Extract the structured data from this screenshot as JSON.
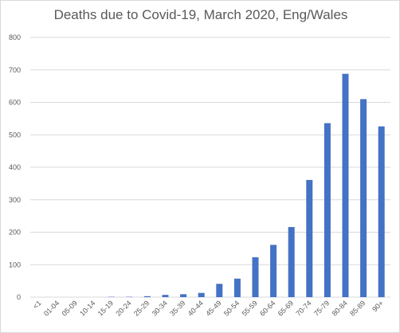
{
  "chart_data": {
    "type": "bar",
    "title": "Deaths due to Covid-19, March 2020, Eng/Wales",
    "xlabel": "",
    "ylabel": "",
    "categories": [
      "<1",
      "01-04",
      "05-09",
      "10-14",
      "15-19",
      "20-24",
      "25-29",
      "30-34",
      "35-39",
      "40-44",
      "45-49",
      "50-54",
      "55-59",
      "60-64",
      "65-69",
      "70-74",
      "75-79",
      "80-84",
      "85-89",
      "90+"
    ],
    "values": [
      0,
      0,
      0,
      0,
      1,
      1,
      3,
      7,
      9,
      13,
      41,
      57,
      123,
      161,
      216,
      361,
      536,
      688,
      610,
      526
    ],
    "ylim": [
      0,
      800
    ],
    "yticks": [
      "0",
      "100",
      "200",
      "300",
      "400",
      "500",
      "600",
      "700",
      "800"
    ],
    "grid": true,
    "legend": "none",
    "bar_color": "#4472c4",
    "grid_color": "#d9d9d9"
  }
}
